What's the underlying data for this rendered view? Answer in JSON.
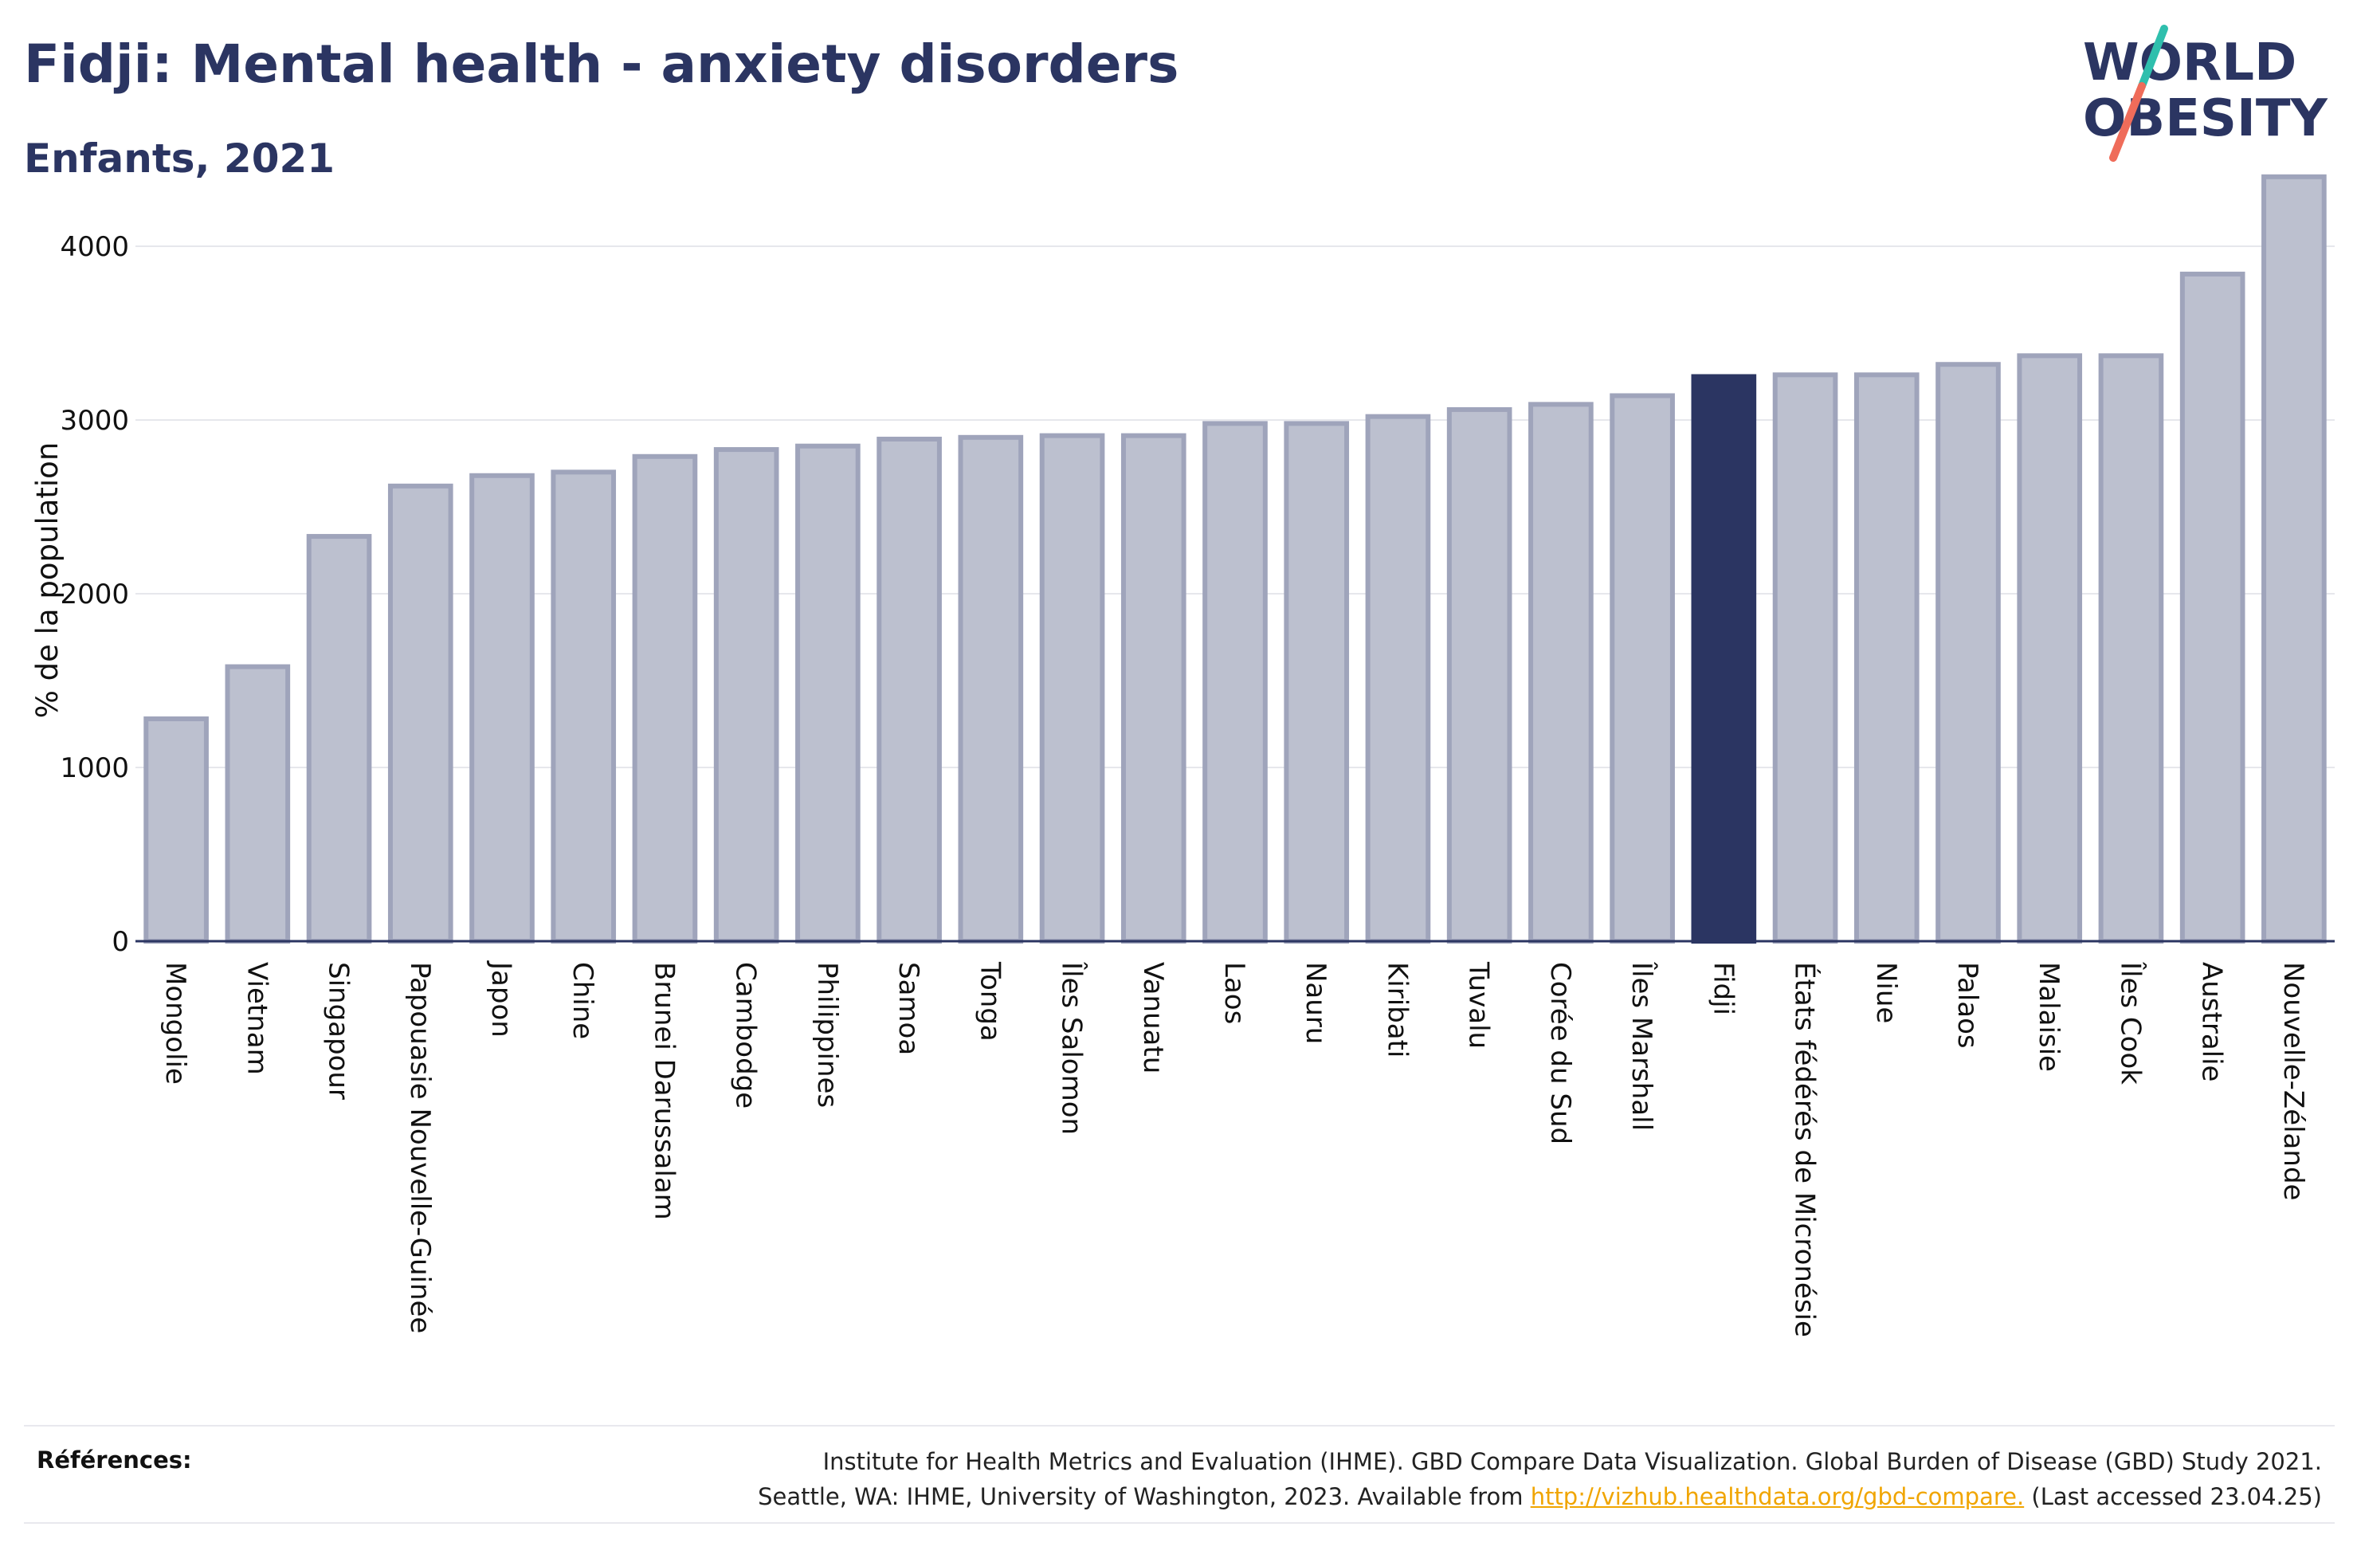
{
  "header": {
    "title": "Fidji: Mental health - anxiety disorders",
    "subtitle": "Enfants, 2021"
  },
  "logo": {
    "line1": "WORLD",
    "line2": "OBESITY"
  },
  "chart_data": {
    "type": "bar",
    "ylabel": "% de la population",
    "yticks": [
      0,
      1000,
      2000,
      3000,
      4000
    ],
    "ylim": [
      0,
      4500
    ],
    "grid": true,
    "highlight": "Fidji",
    "categories": [
      "Mongolie",
      "Vietnam",
      "Singapour",
      "Papouasie Nouvelle-Guinée",
      "Japon",
      "Chine",
      "Brunei Darussalam",
      "Cambodge",
      "Philippines",
      "Samoa",
      "Tonga",
      "Îles Salomon",
      "Vanuatu",
      "Laos",
      "Nauru",
      "Kiribati",
      "Tuvalu",
      "Corée du Sud",
      "Îles Marshall",
      "Fidji",
      "États fédérés de Micronésie",
      "Niue",
      "Palaos",
      "Malaisie",
      "Îles Cook",
      "Australie",
      "Nouvelle-Zélande"
    ],
    "values": [
      1280,
      1580,
      2330,
      2620,
      2680,
      2700,
      2790,
      2830,
      2850,
      2890,
      2900,
      2910,
      2910,
      2980,
      2980,
      3020,
      3060,
      3090,
      3140,
      3250,
      3260,
      3260,
      3320,
      3370,
      3370,
      3840,
      4400
    ]
  },
  "colors": {
    "bar": "#bcc0cf",
    "bar_stroke": "#9fa4bb",
    "highlight": "#2b3562",
    "title": "#2b3562",
    "logo_teal": "#2fbfad",
    "logo_coral": "#ef6c5a",
    "link": "#f0a500"
  },
  "references": {
    "label": "Références:",
    "line1": "Institute for Health Metrics and Evaluation (IHME). GBD Compare Data Visualization. Global Burden of Disease (GBD) Study 2021.",
    "line2_prefix": "Seattle, WA: IHME, University of Washington, 2023. Available from ",
    "link_text": "http://vizhub.healthdata.org/gbd-compare.",
    "line2_suffix": " (Last accessed 23.04.25)"
  }
}
